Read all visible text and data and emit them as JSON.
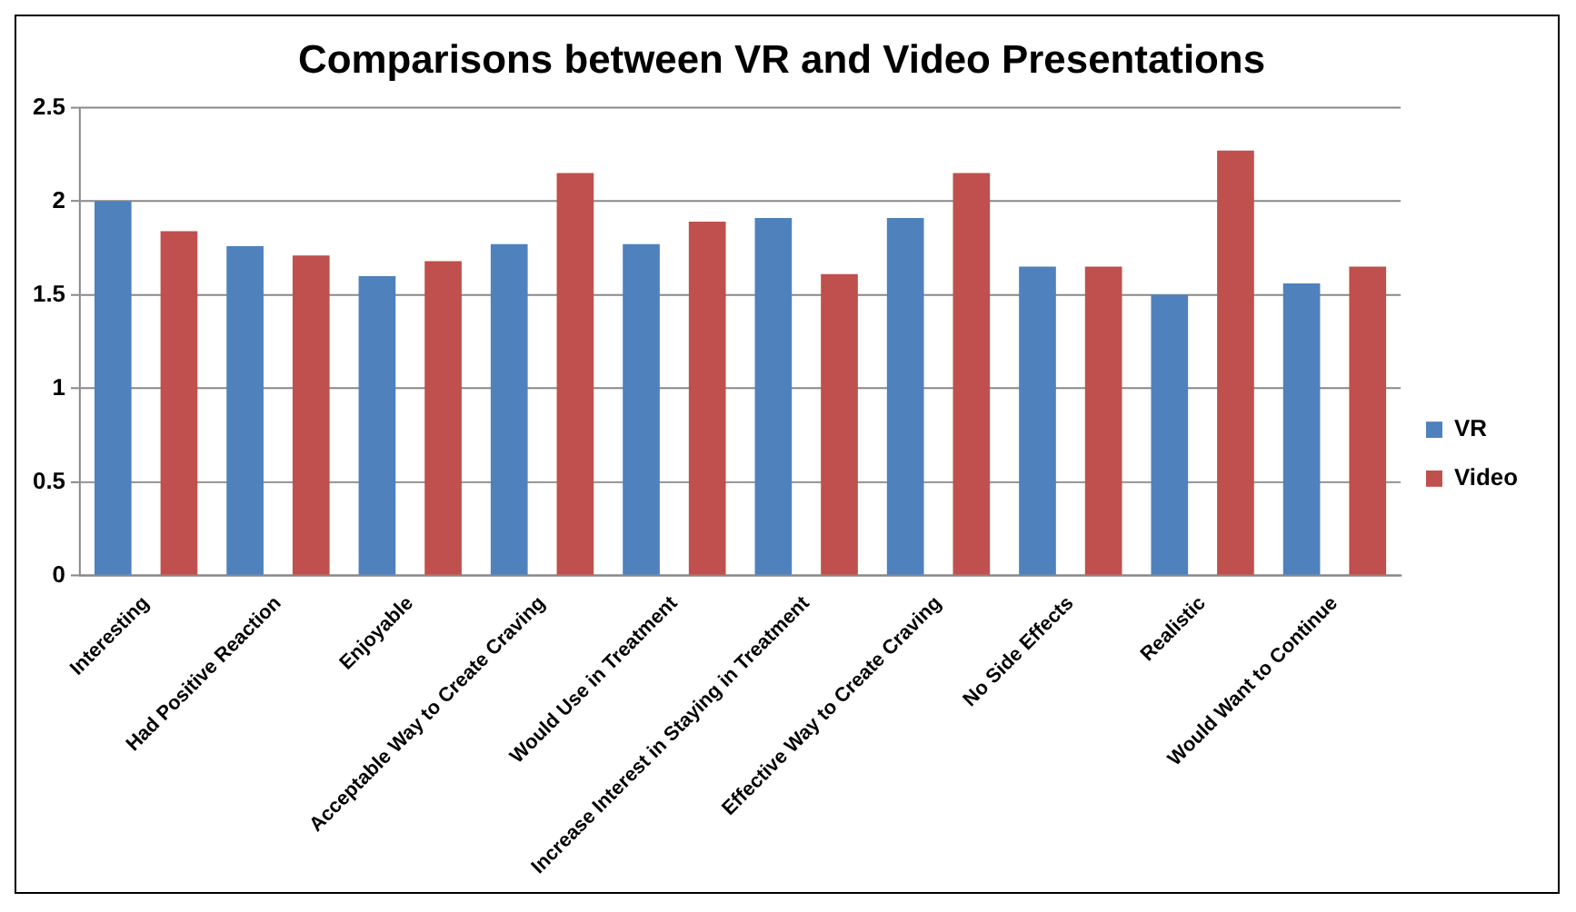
{
  "chart_data": {
    "type": "bar",
    "title": "Comparisons between VR and Video Presentations",
    "categories": [
      "Interesting",
      "Had Positive Reaction",
      "Enjoyable",
      "Acceptable Way to Create Craving",
      "Would Use in Treatment",
      "Increase Interest in Staying in Treatment",
      "Effective Way to Create Craving",
      "No Side Effects",
      "Realistic",
      "Would Want to Continue"
    ],
    "series": [
      {
        "name": "VR",
        "color": "#4f81bd",
        "values": [
          2.0,
          1.76,
          1.6,
          1.77,
          1.77,
          1.91,
          1.91,
          1.65,
          1.5,
          1.56
        ]
      },
      {
        "name": "Video",
        "color": "#c0504d",
        "values": [
          1.84,
          1.71,
          1.68,
          2.15,
          1.89,
          1.61,
          2.15,
          1.65,
          2.27,
          1.65
        ]
      }
    ],
    "ylim": [
      0,
      2.5
    ],
    "yticks": [
      0,
      0.5,
      1,
      1.5,
      2,
      2.5
    ],
    "grid": "y",
    "legend": "right"
  }
}
